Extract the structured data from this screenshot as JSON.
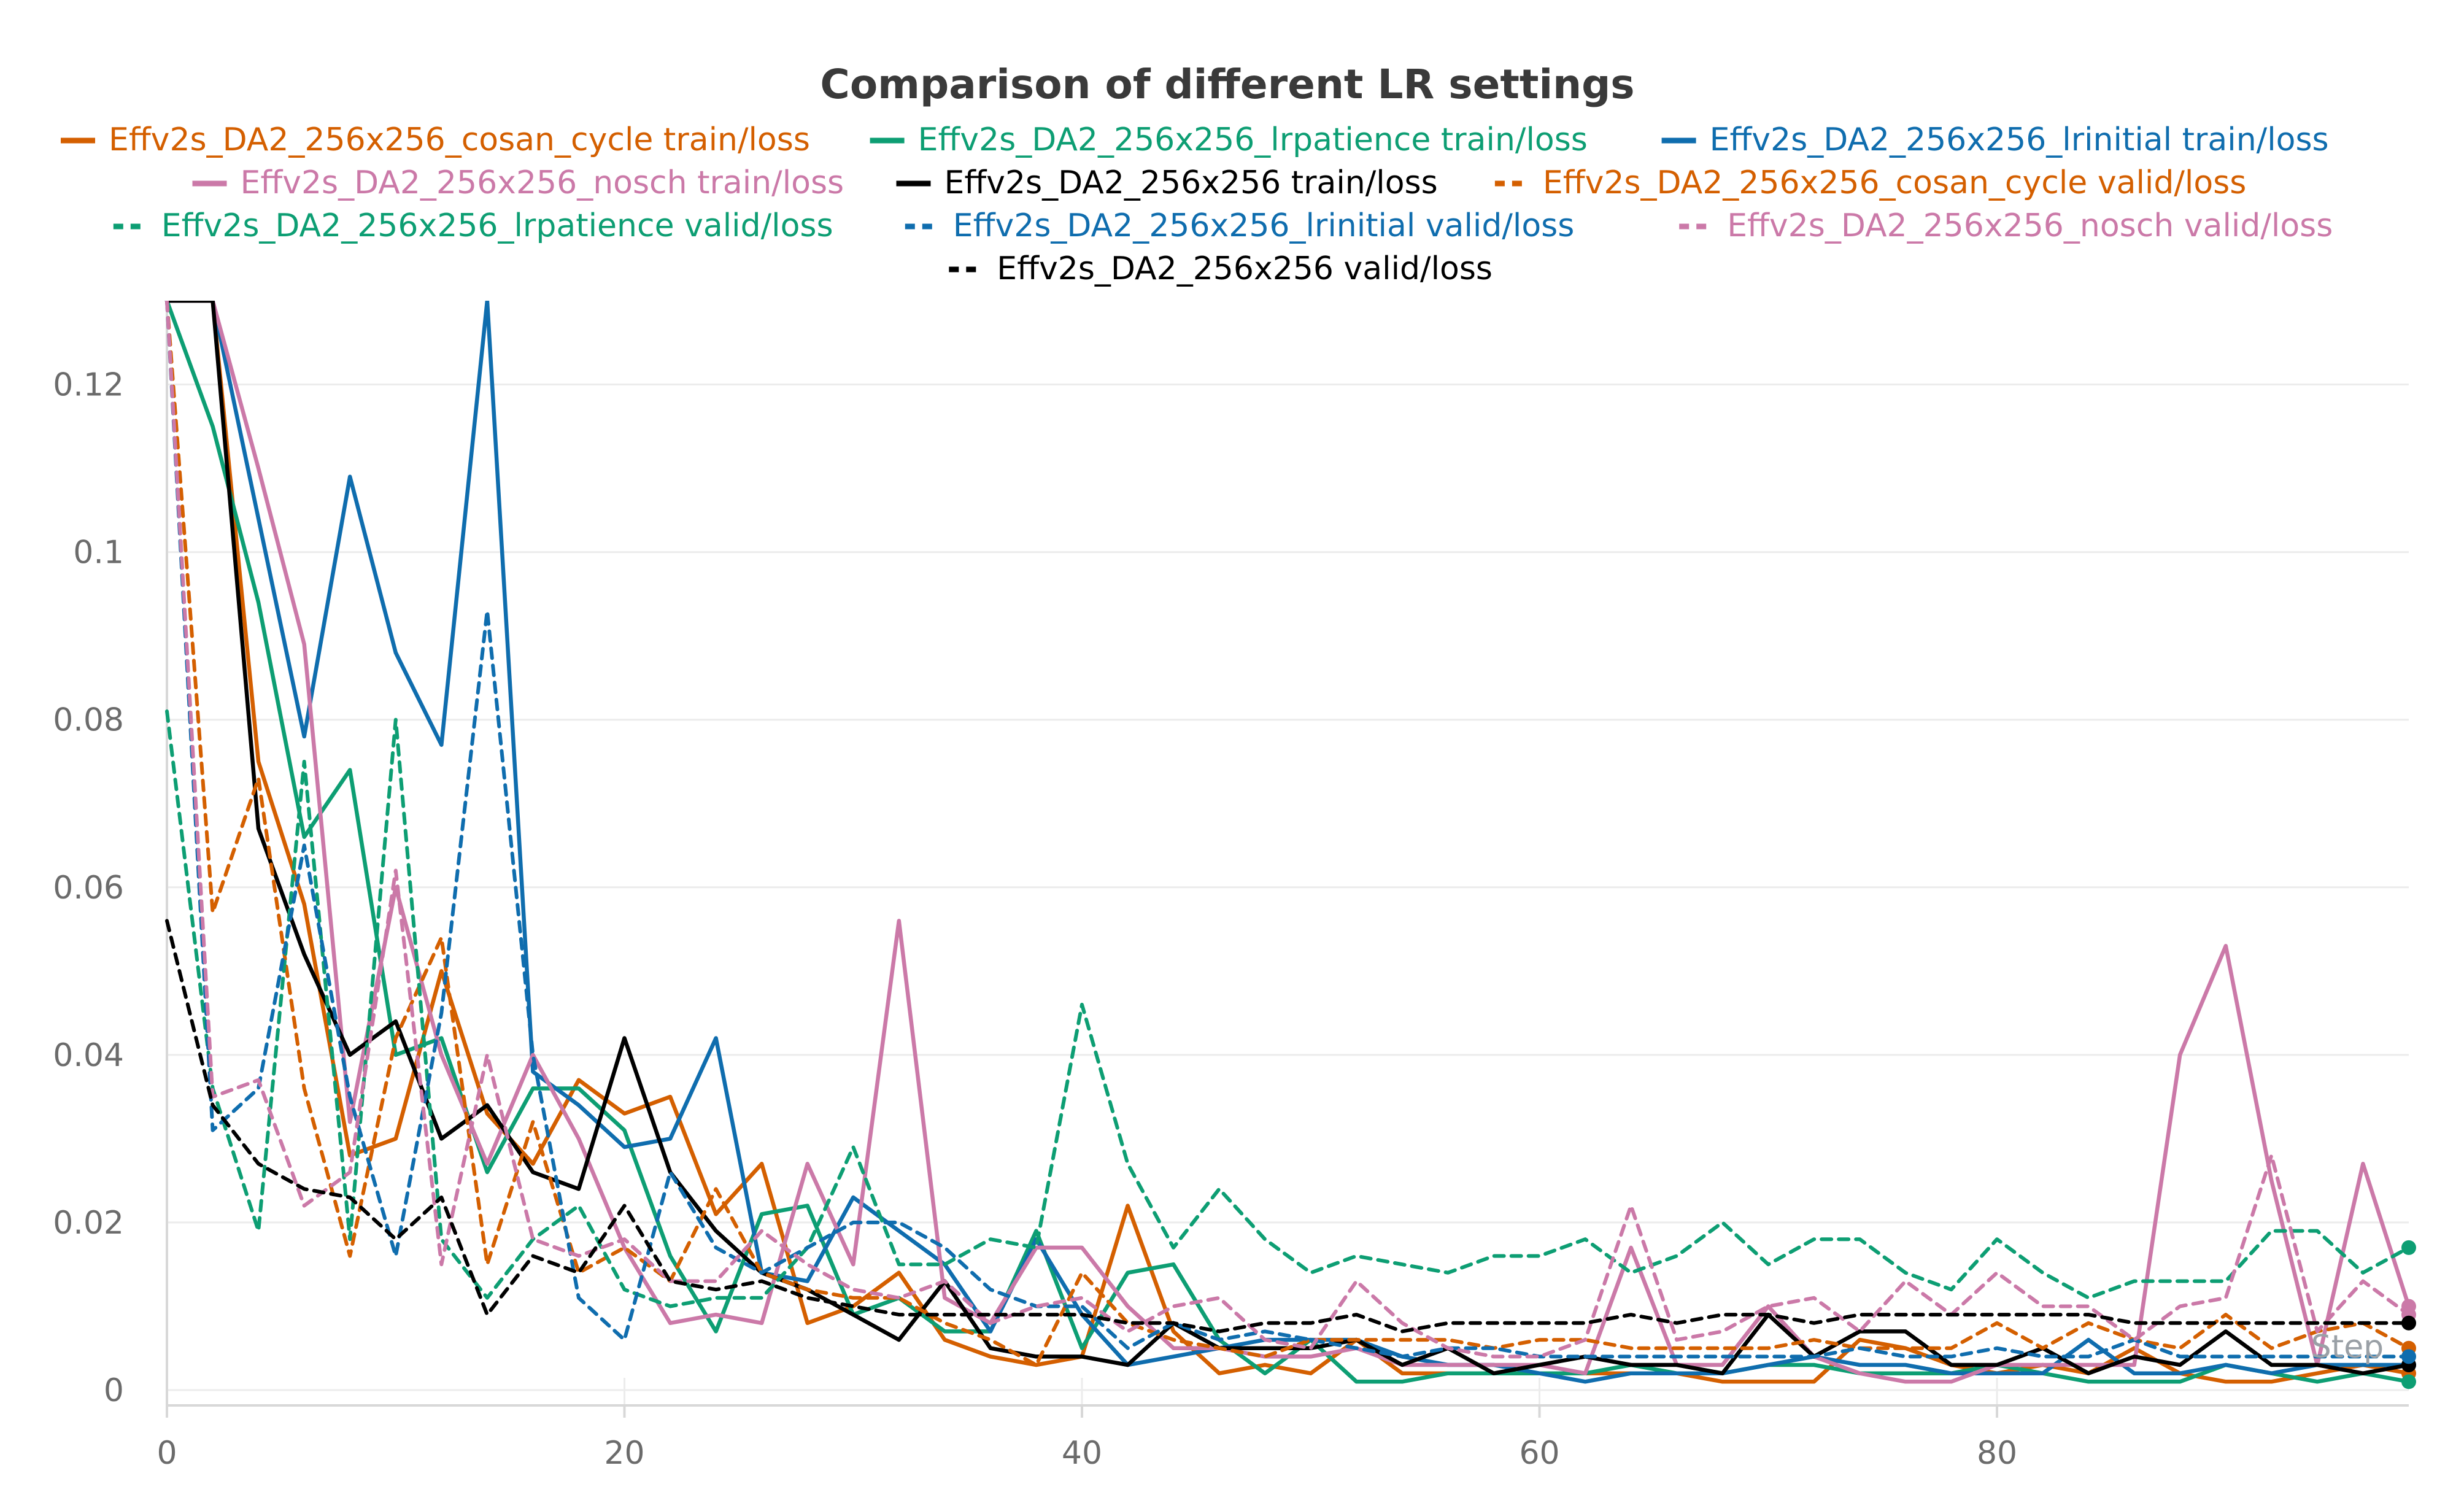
{
  "chart_data": {
    "type": "line",
    "title": "Comparison of different LR settings",
    "xlabel": "Step",
    "ylabel": "",
    "xlim": [
      0,
      98
    ],
    "ylim": [
      0,
      0.13
    ],
    "x_ticks": [
      0,
      20,
      40,
      60,
      80
    ],
    "y_ticks": [
      0,
      0.02,
      0.04,
      0.06,
      0.08,
      0.1,
      0.12
    ],
    "y_tick_labels": [
      "0",
      "0.02",
      "0.04",
      "0.06",
      "0.08",
      "0.1",
      "0.12"
    ],
    "grid": true,
    "legend_position": "top",
    "x": [
      0,
      2,
      4,
      6,
      8,
      10,
      12,
      14,
      16,
      18,
      20,
      22,
      24,
      26,
      28,
      30,
      32,
      34,
      36,
      38,
      40,
      42,
      44,
      46,
      48,
      50,
      52,
      54,
      56,
      58,
      60,
      62,
      64,
      66,
      68,
      70,
      72,
      74,
      76,
      78,
      80,
      82,
      84,
      86,
      88,
      90,
      92,
      94,
      96,
      98
    ],
    "series": [
      {
        "name": "Effv2s_DA2_256x256_cosan_cycle train/loss",
        "color": "#d45f00",
        "dash": false,
        "values": [
          0.13,
          0.13,
          0.075,
          0.058,
          0.028,
          0.03,
          0.05,
          0.033,
          0.027,
          0.037,
          0.033,
          0.035,
          0.021,
          0.027,
          0.008,
          0.01,
          0.014,
          0.006,
          0.004,
          0.003,
          0.004,
          0.022,
          0.007,
          0.002,
          0.003,
          0.002,
          0.006,
          0.002,
          0.002,
          0.002,
          0.002,
          0.002,
          0.002,
          0.002,
          0.001,
          0.001,
          0.001,
          0.006,
          0.005,
          0.003,
          0.002,
          0.003,
          0.002,
          0.005,
          0.002,
          0.001,
          0.001,
          0.002,
          0.003,
          0.002
        ]
      },
      {
        "name": "Effv2s_DA2_256x256_lrpatience train/loss",
        "color": "#0d9e73",
        "dash": false,
        "values": [
          0.13,
          0.115,
          0.094,
          0.066,
          0.074,
          0.04,
          0.042,
          0.026,
          0.036,
          0.036,
          0.031,
          0.016,
          0.007,
          0.021,
          0.022,
          0.009,
          0.011,
          0.007,
          0.007,
          0.019,
          0.005,
          0.014,
          0.015,
          0.006,
          0.002,
          0.006,
          0.001,
          0.001,
          0.002,
          0.002,
          0.002,
          0.002,
          0.003,
          0.002,
          0.002,
          0.003,
          0.003,
          0.002,
          0.002,
          0.002,
          0.003,
          0.002,
          0.001,
          0.001,
          0.001,
          0.003,
          0.002,
          0.001,
          0.002,
          0.001
        ]
      },
      {
        "name": "Effv2s_DA2_256x256_lrinitial train/loss",
        "color": "#0f6dae",
        "dash": false,
        "values": [
          0.13,
          0.13,
          0.104,
          0.078,
          0.109,
          0.088,
          0.077,
          0.13,
          0.038,
          0.034,
          0.029,
          0.03,
          0.042,
          0.014,
          0.013,
          0.023,
          0.019,
          0.015,
          0.007,
          0.018,
          0.009,
          0.003,
          0.004,
          0.005,
          0.006,
          0.006,
          0.006,
          0.004,
          0.003,
          0.003,
          0.002,
          0.001,
          0.002,
          0.002,
          0.002,
          0.003,
          0.004,
          0.003,
          0.003,
          0.002,
          0.002,
          0.002,
          0.006,
          0.002,
          0.002,
          0.003,
          0.002,
          0.003,
          0.003,
          0.003
        ]
      },
      {
        "name": "Effv2s_DA2_256x256_nosch train/loss",
        "color": "#cb79a8",
        "dash": false,
        "values": [
          0.13,
          0.13,
          0.11,
          0.089,
          0.032,
          0.06,
          0.04,
          0.027,
          0.04,
          0.03,
          0.017,
          0.008,
          0.009,
          0.008,
          0.027,
          0.015,
          0.056,
          0.011,
          0.008,
          0.017,
          0.017,
          0.01,
          0.005,
          0.005,
          0.004,
          0.004,
          0.005,
          0.003,
          0.003,
          0.003,
          0.003,
          0.002,
          0.017,
          0.003,
          0.003,
          0.01,
          0.004,
          0.002,
          0.001,
          0.001,
          0.003,
          0.003,
          0.003,
          0.003,
          0.04,
          0.053,
          0.025,
          0.003,
          0.027,
          0.01
        ]
      },
      {
        "name": "Effv2s_DA2_256x256 train/loss",
        "color": "#000000",
        "dash": false,
        "values": [
          0.13,
          0.13,
          0.067,
          0.052,
          0.04,
          0.044,
          0.03,
          0.034,
          0.026,
          0.024,
          0.042,
          0.026,
          0.019,
          0.014,
          0.012,
          0.009,
          0.006,
          0.013,
          0.005,
          0.004,
          0.004,
          0.003,
          0.008,
          0.005,
          0.005,
          0.005,
          0.006,
          0.003,
          0.005,
          0.002,
          0.003,
          0.004,
          0.003,
          0.003,
          0.002,
          0.009,
          0.004,
          0.007,
          0.007,
          0.003,
          0.003,
          0.005,
          0.002,
          0.004,
          0.003,
          0.007,
          0.003,
          0.003,
          0.002,
          0.003
        ]
      },
      {
        "name": "Effv2s_DA2_256x256_cosan_cycle valid/loss",
        "color": "#d45f00",
        "dash": true,
        "values": [
          0.13,
          0.057,
          0.073,
          0.036,
          0.016,
          0.042,
          0.054,
          0.015,
          0.032,
          0.014,
          0.017,
          0.013,
          0.024,
          0.014,
          0.012,
          0.011,
          0.011,
          0.008,
          0.006,
          0.003,
          0.014,
          0.008,
          0.006,
          0.005,
          0.004,
          0.006,
          0.006,
          0.006,
          0.006,
          0.005,
          0.006,
          0.006,
          0.005,
          0.005,
          0.005,
          0.005,
          0.006,
          0.005,
          0.005,
          0.005,
          0.008,
          0.005,
          0.008,
          0.006,
          0.005,
          0.009,
          0.005,
          0.007,
          0.008,
          0.005
        ]
      },
      {
        "name": "Effv2s_DA2_256x256_lrpatience valid/loss",
        "color": "#0d9e73",
        "dash": true,
        "values": [
          0.081,
          0.036,
          0.019,
          0.075,
          0.018,
          0.08,
          0.018,
          0.011,
          0.018,
          0.022,
          0.012,
          0.01,
          0.011,
          0.011,
          0.017,
          0.029,
          0.015,
          0.015,
          0.018,
          0.017,
          0.046,
          0.027,
          0.017,
          0.024,
          0.018,
          0.014,
          0.016,
          0.015,
          0.014,
          0.016,
          0.016,
          0.018,
          0.014,
          0.016,
          0.02,
          0.015,
          0.018,
          0.018,
          0.014,
          0.012,
          0.018,
          0.014,
          0.011,
          0.013,
          0.013,
          0.013,
          0.019,
          0.019,
          0.014,
          0.017
        ]
      },
      {
        "name": "Effv2s_DA2_256x256_lrinitial valid/loss",
        "color": "#0f6dae",
        "dash": true,
        "values": [
          0.13,
          0.031,
          0.036,
          0.065,
          0.035,
          0.016,
          0.045,
          0.093,
          0.04,
          0.011,
          0.006,
          0.026,
          0.017,
          0.014,
          0.017,
          0.02,
          0.02,
          0.017,
          0.012,
          0.01,
          0.01,
          0.005,
          0.008,
          0.006,
          0.007,
          0.006,
          0.005,
          0.004,
          0.005,
          0.005,
          0.004,
          0.004,
          0.004,
          0.004,
          0.004,
          0.004,
          0.004,
          0.005,
          0.004,
          0.004,
          0.005,
          0.004,
          0.004,
          0.006,
          0.004,
          0.004,
          0.004,
          0.004,
          0.004,
          0.004
        ]
      },
      {
        "name": "Effv2s_DA2_256x256_nosch valid/loss",
        "color": "#cb79a8",
        "dash": true,
        "values": [
          0.13,
          0.035,
          0.037,
          0.022,
          0.026,
          0.062,
          0.015,
          0.04,
          0.018,
          0.016,
          0.018,
          0.013,
          0.013,
          0.019,
          0.015,
          0.012,
          0.011,
          0.013,
          0.008,
          0.01,
          0.011,
          0.007,
          0.01,
          0.011,
          0.006,
          0.005,
          0.013,
          0.008,
          0.005,
          0.004,
          0.004,
          0.006,
          0.022,
          0.006,
          0.007,
          0.01,
          0.011,
          0.007,
          0.013,
          0.009,
          0.014,
          0.01,
          0.01,
          0.006,
          0.01,
          0.011,
          0.028,
          0.007,
          0.013,
          0.009
        ]
      },
      {
        "name": "Effv2s_DA2_256x256 valid/loss",
        "color": "#000000",
        "dash": true,
        "values": [
          0.056,
          0.034,
          0.027,
          0.024,
          0.023,
          0.018,
          0.023,
          0.009,
          0.016,
          0.014,
          0.022,
          0.013,
          0.012,
          0.013,
          0.011,
          0.01,
          0.009,
          0.009,
          0.009,
          0.009,
          0.009,
          0.008,
          0.008,
          0.007,
          0.008,
          0.008,
          0.009,
          0.007,
          0.008,
          0.008,
          0.008,
          0.008,
          0.009,
          0.008,
          0.009,
          0.009,
          0.008,
          0.009,
          0.009,
          0.009,
          0.009,
          0.009,
          0.009,
          0.008,
          0.008,
          0.008,
          0.008,
          0.008,
          0.008,
          0.008
        ]
      }
    ]
  }
}
